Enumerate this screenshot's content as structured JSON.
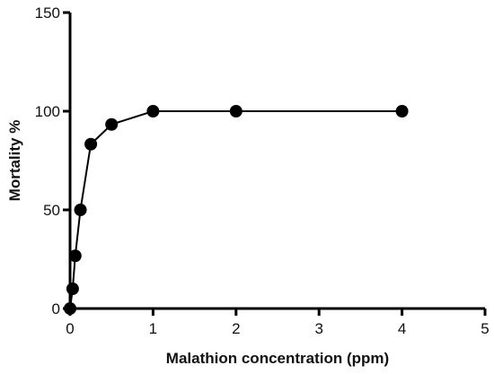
{
  "chart_data": {
    "type": "line",
    "title": "",
    "xlabel": "Malathion concentration (ppm)",
    "ylabel": "Mortality %",
    "xlim": [
      0,
      5
    ],
    "ylim": [
      0,
      150
    ],
    "xticks": [
      0,
      1,
      2,
      3,
      4,
      5
    ],
    "yticks": [
      0,
      50,
      100,
      150
    ],
    "grid": false,
    "legend": "none",
    "series": [
      {
        "x": [
          0,
          0.03125,
          0.0625,
          0.125,
          0.25,
          0.5,
          1,
          2,
          4
        ],
        "y": [
          0,
          10,
          26.7,
          50,
          83.3,
          93.3,
          100,
          100,
          100
        ]
      }
    ],
    "colors": {
      "line": "#000000",
      "marker": "#000000",
      "axis": "#000000"
    }
  }
}
